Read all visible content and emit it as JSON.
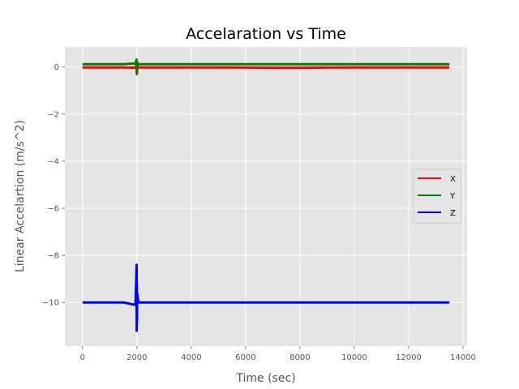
{
  "chart_data": {
    "type": "line",
    "title": "Accelaration vs Time",
    "xlabel": "Time (sec)",
    "ylabel": "Linear Accelartion (m/s^2)",
    "xlim": [
      -650,
      14150
    ],
    "ylim": [
      -11.85,
      0.85
    ],
    "xticks": [
      0,
      2000,
      4000,
      6000,
      8000,
      10000,
      12000,
      14000
    ],
    "yticks": [
      0,
      -2,
      -4,
      -6,
      -8,
      -10
    ],
    "xtick_labels": [
      "0",
      "2000",
      "4000",
      "6000",
      "8000",
      "10000",
      "12000",
      "14000"
    ],
    "ytick_labels": [
      "0",
      "−2",
      "−4",
      "−6",
      "−8",
      "−10"
    ],
    "grid": true,
    "legend_position": "center-right",
    "series": [
      {
        "name": "X",
        "color": "#ff0000",
        "x": [
          0,
          1500,
          1950,
          1980,
          2000,
          2020,
          2050,
          2500,
          5000,
          7500,
          10000,
          12500,
          13500
        ],
        "values": [
          -0.02,
          -0.02,
          -0.03,
          0.1,
          -0.3,
          0.05,
          -0.02,
          -0.02,
          -0.02,
          -0.03,
          -0.02,
          -0.02,
          -0.02
        ]
      },
      {
        "name": "Y",
        "color": "#008000",
        "x": [
          0,
          1500,
          1950,
          1985,
          2000,
          2015,
          2050,
          2500,
          5000,
          7500,
          10000,
          12500,
          13500
        ],
        "values": [
          0.12,
          0.12,
          0.15,
          0.32,
          -0.25,
          0.2,
          0.12,
          0.12,
          0.12,
          0.12,
          0.12,
          0.12,
          0.12
        ]
      },
      {
        "name": "Z",
        "color": "#0000ff",
        "x": [
          0,
          1500,
          1950,
          1990,
          1995,
          2000,
          2005,
          2010,
          2060,
          2500,
          5000,
          7500,
          10000,
          12500,
          13500
        ],
        "values": [
          -10.0,
          -10.0,
          -10.1,
          -8.4,
          -11.2,
          -9.2,
          -10.8,
          -9.6,
          -10.0,
          -10.0,
          -10.0,
          -10.0,
          -10.0,
          -10.0,
          -10.0
        ]
      }
    ]
  }
}
